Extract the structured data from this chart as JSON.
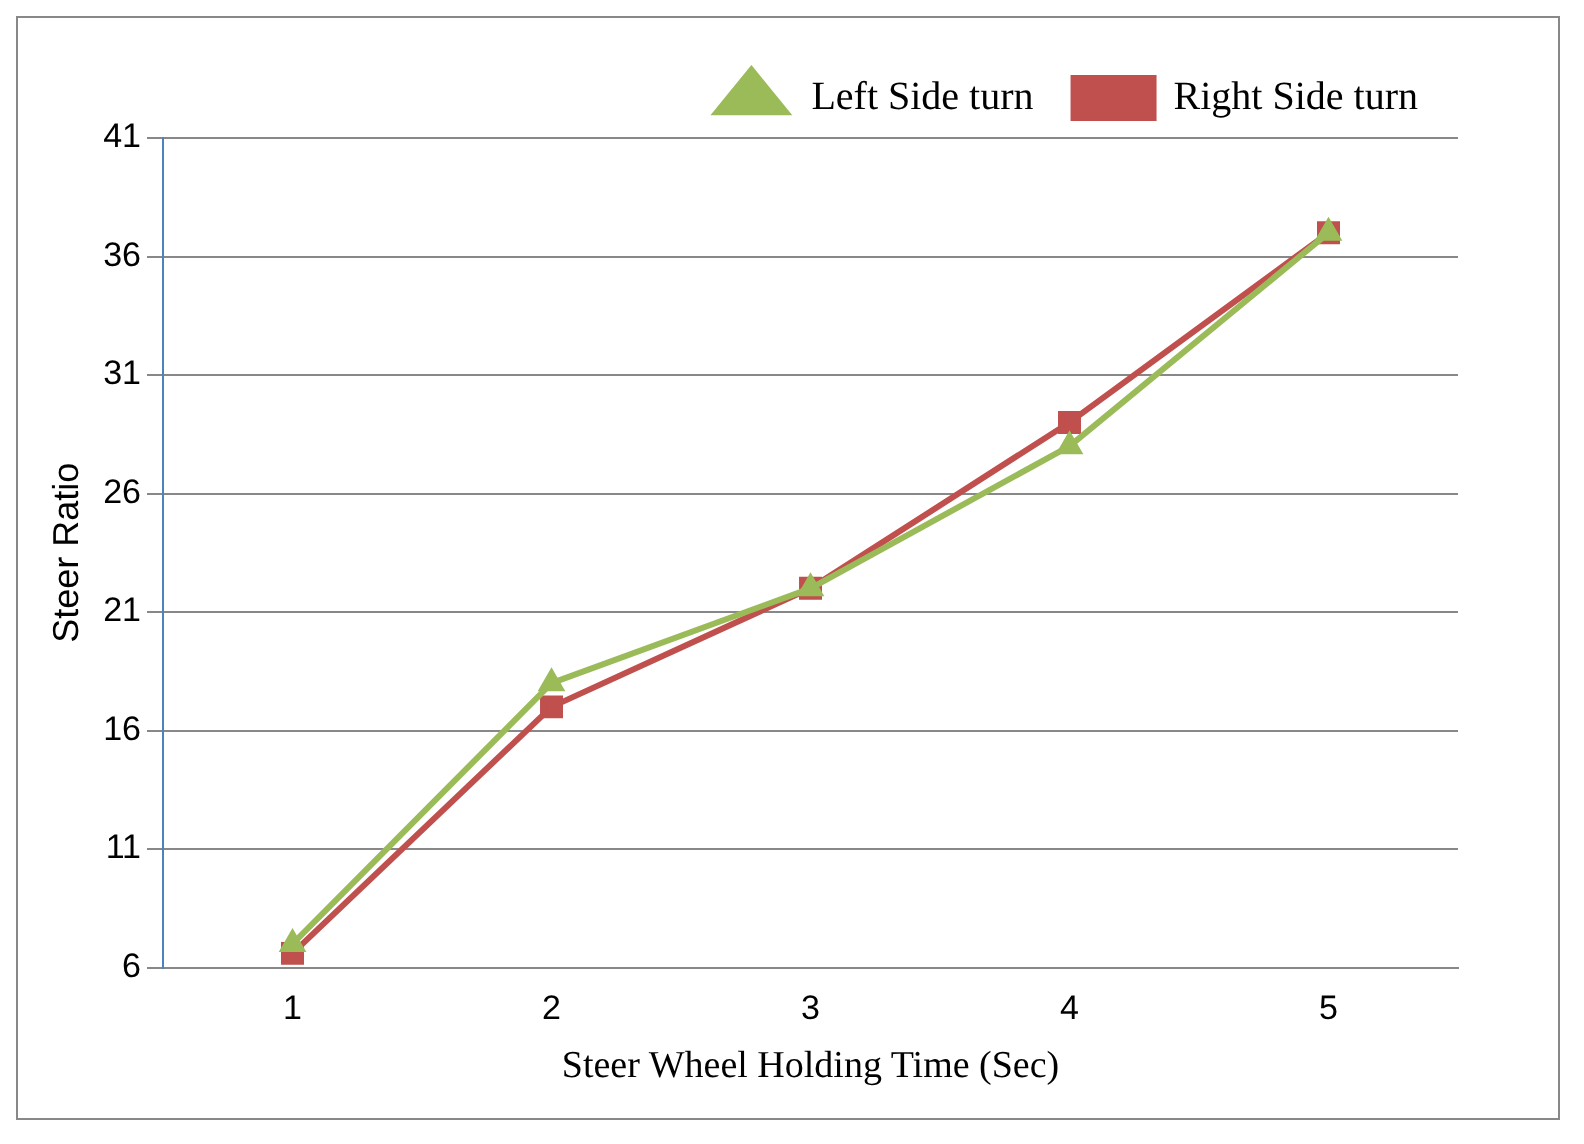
{
  "chart_data": {
    "type": "line",
    "xlabel": "Steer Wheel Holding Time (Sec)",
    "ylabel": "Steer Ratio",
    "categories": [
      "1",
      "2",
      "3",
      "4",
      "5"
    ],
    "series": [
      {
        "name": "Right Side turn",
        "color": "#c0504d",
        "marker": "square",
        "values": [
          6.6,
          17,
          22,
          29,
          37
        ]
      },
      {
        "name": "Left Side turn",
        "color": "#9bbb59",
        "marker": "triangle",
        "values": [
          7,
          18,
          22,
          28,
          37
        ]
      }
    ],
    "ylim": [
      6,
      41
    ],
    "yticks": [
      6,
      11,
      16,
      21,
      26,
      31,
      36,
      41
    ],
    "grid": "y",
    "legend": "top right",
    "line_style": "solid"
  }
}
